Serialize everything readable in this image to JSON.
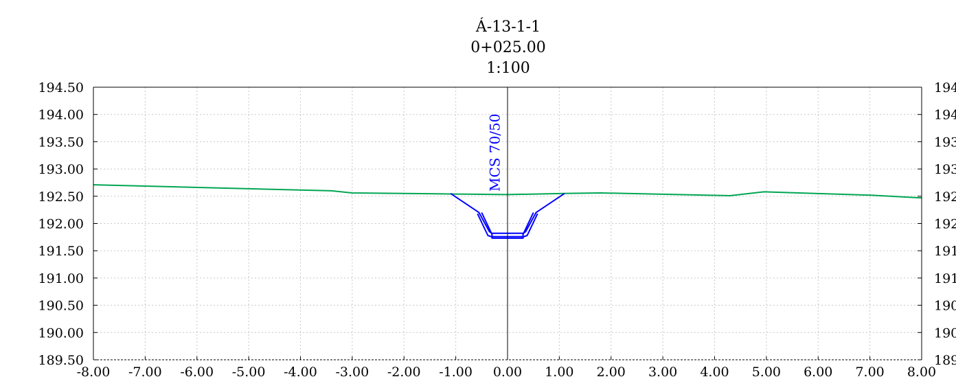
{
  "chart_data": {
    "type": "line",
    "title_lines": [
      "Á-13-1-1",
      "0+025.00",
      "1:100"
    ],
    "xlim": [
      -8.0,
      8.0
    ],
    "ylim": [
      189.5,
      194.5
    ],
    "x_ticks": [
      -8,
      -7,
      -6,
      -5,
      -4,
      -3,
      -2,
      -1,
      0,
      1,
      2,
      3,
      4,
      5,
      6,
      7,
      8
    ],
    "x_tick_labels": [
      "-8.00",
      "-7.00",
      "-6.00",
      "-5.00",
      "-4.00",
      "-3.00",
      "-2.00",
      "-1.00",
      "0.00",
      "1.00",
      "2.00",
      "3.00",
      "4.00",
      "5.00",
      "6.00",
      "7.00",
      "8.00"
    ],
    "y_ticks": [
      194.5,
      194.0,
      193.5,
      193.0,
      192.5,
      192.0,
      191.5,
      191.0,
      190.5,
      190.0,
      189.5
    ],
    "y_tick_labels": [
      "194.50",
      "194.00",
      "193.50",
      "193.00",
      "192.50",
      "192.00",
      "191.50",
      "191.00",
      "190.50",
      "190.00",
      "189.50"
    ],
    "grid": true,
    "series": [
      {
        "color": "#00a651",
        "points": [
          [
            -8.0,
            192.71
          ],
          [
            -3.4,
            192.6
          ],
          [
            -3.0,
            192.56
          ],
          [
            -1.0,
            192.54
          ],
          [
            0.0,
            192.53
          ],
          [
            1.1,
            192.55
          ],
          [
            1.8,
            192.56
          ],
          [
            4.3,
            192.51
          ],
          [
            4.95,
            192.58
          ],
          [
            7.0,
            192.52
          ],
          [
            8.0,
            192.47
          ]
        ]
      },
      {
        "color": "#0000ff",
        "points": [
          [
            -1.1,
            192.55
          ],
          [
            -0.55,
            192.2
          ],
          [
            -0.35,
            191.85
          ],
          [
            -0.3,
            191.82
          ],
          [
            0.3,
            191.82
          ],
          [
            0.35,
            191.85
          ],
          [
            0.55,
            192.2
          ],
          [
            1.1,
            192.55
          ]
        ]
      },
      {
        "color": "#0000ff",
        "points": [
          [
            -0.5,
            192.2
          ],
          [
            -0.3,
            191.8
          ],
          [
            -0.3,
            191.73
          ],
          [
            0.3,
            191.73
          ],
          [
            0.3,
            191.8
          ],
          [
            0.5,
            192.2
          ]
        ]
      },
      {
        "color": "#0000ff",
        "points": [
          [
            -0.58,
            192.18
          ],
          [
            -0.38,
            191.78
          ],
          [
            -0.32,
            191.76
          ],
          [
            0.32,
            191.76
          ],
          [
            0.38,
            191.78
          ],
          [
            0.58,
            192.18
          ]
        ]
      }
    ],
    "annotation": {
      "text": "MCS 70/50",
      "x": -0.15,
      "y": 193.3,
      "color": "#0000ff"
    },
    "axis_color": "#000000",
    "grid_color": "#c8c8c8",
    "centerline_x": 0
  }
}
